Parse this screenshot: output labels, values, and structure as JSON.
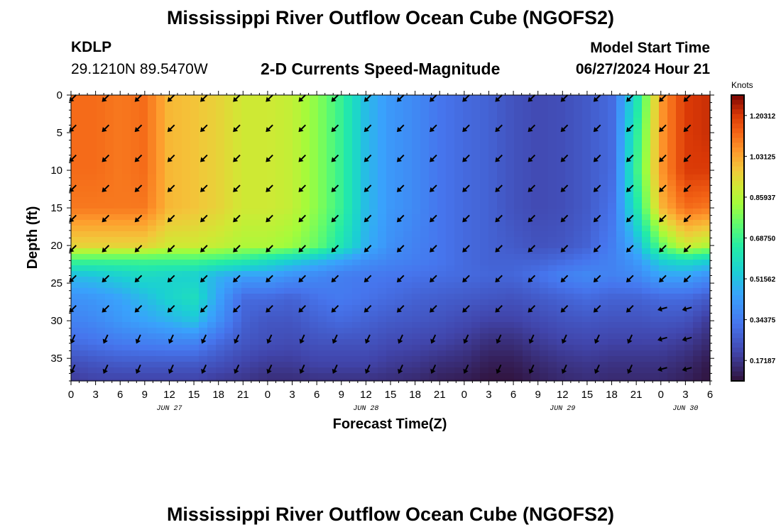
{
  "header": {
    "title": "Mississippi River Outflow Ocean Cube (NGOFS2)",
    "station_id": "KDLP",
    "coords": "29.1210N  89.5470W",
    "subtitle": "2-D Currents Speed-Magnitude",
    "model_start_label": "Model Start Time",
    "model_start_value": "06/27/2024 Hour 21"
  },
  "footer": {
    "title_repeat": "Mississippi River Outflow Ocean Cube (NGOFS2)"
  },
  "chart_data": {
    "type": "heatmap",
    "title": "2-D Currents Speed-Magnitude",
    "xlabel": "Forecast Time(Z)",
    "ylabel": "Depth (ft)",
    "x_range_hours": [
      0,
      78
    ],
    "y_range_ft": [
      0,
      38
    ],
    "x_tick_labels": [
      "0",
      "3",
      "6",
      "9",
      "12",
      "15",
      "18",
      "21",
      "0",
      "3",
      "6",
      "9",
      "12",
      "15",
      "18",
      "21",
      "0",
      "3",
      "6",
      "9",
      "12",
      "15",
      "18",
      "21",
      "0",
      "3",
      "6"
    ],
    "y_ticks": [
      0,
      5,
      10,
      15,
      20,
      25,
      30,
      35
    ],
    "date_labels": [
      {
        "label": "JUN 27",
        "hour": 12
      },
      {
        "label": "JUN 28",
        "hour": 36
      },
      {
        "label": "JUN 29",
        "hour": 60
      },
      {
        "label": "JUN 30",
        "hour": 75
      }
    ],
    "colorbar": {
      "unit": "Knots",
      "range": [
        0.0859,
        1.2891
      ],
      "ticks": [
        "1.20312",
        "1.03125",
        "0.85937",
        "0.68750",
        "0.51562",
        "0.34375",
        "0.17187"
      ],
      "tick_values": [
        1.20312,
        1.03125,
        0.85937,
        0.6875,
        0.51562,
        0.34375,
        0.17187
      ]
    },
    "speed_knots": {
      "hours": [
        0,
        3,
        6,
        9,
        12,
        15,
        18,
        21,
        24,
        27,
        30,
        33,
        36,
        39,
        42,
        45,
        48,
        51,
        54,
        57,
        60,
        63,
        66,
        69,
        72,
        75,
        78
      ],
      "depths_ft": [
        0,
        5,
        10,
        15,
        20,
        22,
        24,
        27,
        30,
        33,
        36,
        38
      ],
      "rows": [
        [
          1.12,
          1.12,
          1.1,
          1.12,
          1.0,
          0.98,
          0.95,
          0.9,
          0.9,
          0.88,
          0.8,
          0.68,
          0.5,
          0.42,
          0.38,
          0.33,
          0.3,
          0.28,
          0.24,
          0.22,
          0.23,
          0.26,
          0.3,
          0.6,
          1.05,
          1.2,
          1.22
        ],
        [
          1.12,
          1.12,
          1.1,
          1.12,
          1.0,
          0.98,
          0.95,
          0.9,
          0.9,
          0.88,
          0.8,
          0.68,
          0.5,
          0.42,
          0.38,
          0.33,
          0.3,
          0.28,
          0.24,
          0.22,
          0.23,
          0.26,
          0.3,
          0.65,
          1.05,
          1.2,
          1.22
        ],
        [
          1.12,
          1.12,
          1.1,
          1.12,
          1.0,
          0.98,
          0.95,
          0.9,
          0.9,
          0.88,
          0.8,
          0.68,
          0.5,
          0.42,
          0.38,
          0.33,
          0.3,
          0.28,
          0.24,
          0.22,
          0.23,
          0.26,
          0.3,
          0.68,
          1.05,
          1.2,
          1.2
        ],
        [
          1.1,
          1.1,
          1.1,
          1.1,
          1.0,
          0.98,
          0.95,
          0.9,
          0.9,
          0.88,
          0.8,
          0.68,
          0.5,
          0.42,
          0.38,
          0.33,
          0.3,
          0.28,
          0.24,
          0.22,
          0.23,
          0.26,
          0.32,
          0.62,
          1.0,
          1.12,
          1.1
        ],
        [
          0.95,
          0.95,
          0.95,
          0.95,
          0.9,
          0.9,
          0.88,
          0.85,
          0.85,
          0.82,
          0.75,
          0.62,
          0.48,
          0.4,
          0.36,
          0.33,
          0.3,
          0.28,
          0.26,
          0.24,
          0.25,
          0.28,
          0.35,
          0.48,
          0.75,
          0.9,
          0.85
        ],
        [
          0.7,
          0.7,
          0.7,
          0.7,
          0.7,
          0.7,
          0.68,
          0.65,
          0.6,
          0.55,
          0.5,
          0.45,
          0.4,
          0.37,
          0.35,
          0.33,
          0.3,
          0.28,
          0.28,
          0.28,
          0.3,
          0.33,
          0.36,
          0.42,
          0.55,
          0.6,
          0.55
        ],
        [
          0.5,
          0.52,
          0.55,
          0.58,
          0.56,
          0.55,
          0.48,
          0.44,
          0.44,
          0.4,
          0.38,
          0.35,
          0.34,
          0.33,
          0.32,
          0.31,
          0.3,
          0.29,
          0.29,
          0.32,
          0.36,
          0.38,
          0.36,
          0.38,
          0.45,
          0.45,
          0.4
        ],
        [
          0.4,
          0.42,
          0.45,
          0.5,
          0.56,
          0.6,
          0.45,
          0.3,
          0.3,
          0.28,
          0.32,
          0.34,
          0.32,
          0.3,
          0.28,
          0.27,
          0.26,
          0.25,
          0.24,
          0.26,
          0.28,
          0.3,
          0.28,
          0.28,
          0.3,
          0.3,
          0.26
        ],
        [
          0.36,
          0.38,
          0.42,
          0.45,
          0.48,
          0.52,
          0.4,
          0.28,
          0.25,
          0.25,
          0.28,
          0.3,
          0.28,
          0.26,
          0.25,
          0.24,
          0.22,
          0.2,
          0.2,
          0.22,
          0.24,
          0.25,
          0.24,
          0.24,
          0.25,
          0.24,
          0.18
        ],
        [
          0.3,
          0.32,
          0.34,
          0.35,
          0.36,
          0.36,
          0.3,
          0.25,
          0.23,
          0.22,
          0.24,
          0.24,
          0.24,
          0.22,
          0.21,
          0.2,
          0.18,
          0.15,
          0.15,
          0.18,
          0.2,
          0.21,
          0.2,
          0.2,
          0.2,
          0.18,
          0.14
        ],
        [
          0.22,
          0.24,
          0.25,
          0.25,
          0.25,
          0.25,
          0.23,
          0.2,
          0.18,
          0.18,
          0.2,
          0.2,
          0.2,
          0.18,
          0.17,
          0.15,
          0.14,
          0.11,
          0.11,
          0.14,
          0.16,
          0.17,
          0.16,
          0.16,
          0.16,
          0.14,
          0.1
        ],
        [
          0.18,
          0.2,
          0.2,
          0.2,
          0.2,
          0.2,
          0.18,
          0.17,
          0.15,
          0.15,
          0.16,
          0.16,
          0.16,
          0.15,
          0.14,
          0.12,
          0.11,
          0.09,
          0.09,
          0.12,
          0.14,
          0.15,
          0.14,
          0.14,
          0.14,
          0.12,
          0.09
        ]
      ]
    },
    "vectors": {
      "hours": [
        0,
        4,
        8,
        12,
        16,
        20,
        24,
        28,
        32,
        36,
        40,
        44,
        48,
        52,
        56,
        60,
        64,
        68,
        72,
        75
      ],
      "depths_ft": [
        0,
        4,
        8,
        12,
        16,
        20,
        24,
        28,
        32,
        36
      ],
      "direction_deg": 135,
      "deep_direction_deg": 115,
      "late_direction_deg": 165
    }
  }
}
